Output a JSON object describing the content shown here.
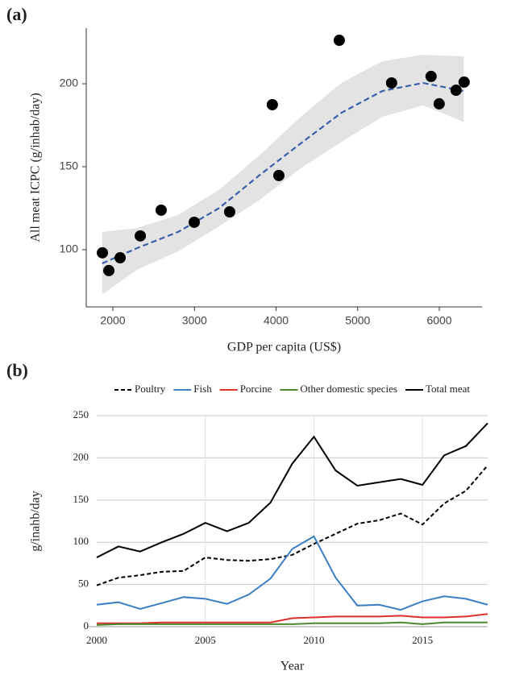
{
  "chart_data": [
    {
      "type": "scatter",
      "panel_label": "(a)",
      "x_label": "GDP  per capita (US$)",
      "y_label": "All meat ICPC (g/inhab/day)",
      "x": [
        1872,
        1951,
        2089,
        2336,
        2592,
        2997,
        3431,
        3954,
        4034,
        4774,
        5415,
        5899,
        5998,
        6205,
        6304
      ],
      "values": [
        98.1,
        87.4,
        95.1,
        108.3,
        123.8,
        116.5,
        122.8,
        187.4,
        144.7,
        226.2,
        200.5,
        204.4,
        187.9,
        196.1,
        201
      ],
      "color": "#000000",
      "fit": {
        "x": [
          1870,
          2300,
          2800,
          3300,
          3800,
          4300,
          4800,
          5300,
          5800,
          6300
        ],
        "values": [
          91.7,
          101,
          110.7,
          125,
          145,
          164,
          182.5,
          195.6,
          200.5,
          195.6
        ],
        "lower": [
          73,
          88,
          99,
          114,
          130,
          149,
          165,
          180,
          187,
          177
        ],
        "upper": [
          110.7,
          113,
          121,
          136,
          157,
          180,
          200.5,
          213.6,
          217.5,
          216.5
        ],
        "color": "#3a5fa8",
        "band_color": "#e3e3e3"
      },
      "xlim": [
        1674,
        6523
      ],
      "ylim": [
        65.5,
        233.5
      ],
      "xticks": [
        2000,
        3000,
        4000,
        5000,
        6000
      ],
      "yticks": [
        100,
        150,
        200
      ],
      "grid": false
    },
    {
      "type": "line",
      "panel_label": "(b)",
      "x_label": "Year",
      "y_label": "g/inahb/day",
      "x": [
        2000,
        2001,
        2002,
        2003,
        2004,
        2005,
        2006,
        2007,
        2008,
        2009,
        2010,
        2011,
        2012,
        2013,
        2014,
        2015,
        2016,
        2017,
        2018
      ],
      "series": [
        {
          "name": "Poultry",
          "color": "#000000",
          "dashed": true,
          "values": [
            49,
            58,
            61,
            65,
            66,
            82,
            79,
            78,
            80,
            85,
            98,
            110,
            122,
            126,
            134,
            121,
            146,
            161,
            191
          ]
        },
        {
          "name": "Fish",
          "color": "#3b7fc4",
          "values": [
            26,
            29,
            21,
            28,
            35,
            33,
            27,
            38,
            57,
            92,
            107,
            58,
            25,
            26,
            20,
            30,
            36,
            33,
            26
          ]
        },
        {
          "name": "Porcine",
          "color": "#e0302a",
          "values": [
            4,
            4,
            4,
            5,
            5,
            5,
            5,
            5,
            5,
            10,
            11,
            12,
            12,
            12,
            13,
            11,
            11,
            12,
            15
          ]
        },
        {
          "name": "Other domestic species",
          "color": "#4a8a2c",
          "values": [
            2,
            3,
            3,
            3,
            3,
            3,
            3,
            3,
            3,
            3,
            4,
            4,
            4,
            4,
            5,
            3,
            5,
            5,
            5
          ]
        },
        {
          "name": "Total meat",
          "color": "#000000",
          "values": [
            82,
            95,
            89,
            100,
            110,
            123,
            113,
            123,
            147,
            193,
            225,
            185,
            167,
            171,
            175,
            168,
            203,
            214,
            241
          ]
        }
      ],
      "xlim": [
        2000,
        2018
      ],
      "ylim": [
        0,
        250
      ],
      "xticks": [
        2000,
        2005,
        2010,
        2015
      ],
      "yticks": [
        0,
        50,
        100,
        150,
        200,
        250
      ],
      "grid": true,
      "legend": "top"
    }
  ]
}
